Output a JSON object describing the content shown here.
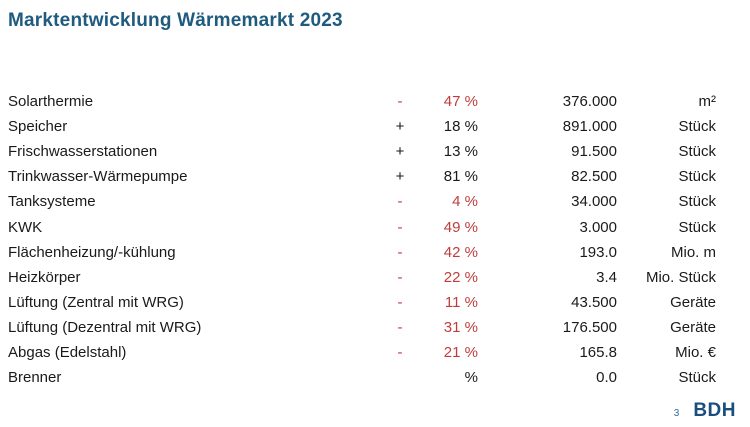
{
  "title": "Marktentwicklung Wärmemarkt 2023",
  "colors": {
    "accent_blue": "#1E5B7E",
    "negative_red": "#BE3E3C",
    "logo_blue": "#1A4E7D",
    "page_number_blue": "#2E6E99"
  },
  "table": {
    "rows": [
      {
        "label": "Solarthermie",
        "sign": "-",
        "percent": "47 %",
        "value": "376.000",
        "unit": "m²"
      },
      {
        "label": "Speicher",
        "sign": "+",
        "percent": "18 %",
        "value": "891.000",
        "unit": "Stück"
      },
      {
        "label": "Frischwasserstationen",
        "sign": "+",
        "percent": "13 %",
        "value": "91.500",
        "unit": "Stück"
      },
      {
        "label": "Trinkwasser-Wärmepumpe",
        "sign": "+",
        "percent": "81 %",
        "value": "82.500",
        "unit": "Stück"
      },
      {
        "label": "Tanksysteme",
        "sign": "-",
        "percent": "4 %",
        "value": "34.000",
        "unit": "Stück"
      },
      {
        "label": "KWK",
        "sign": "-",
        "percent": "49 %",
        "value": "3.000",
        "unit": "Stück"
      },
      {
        "label": "Flächenheizung/-kühlung",
        "sign": "-",
        "percent": "42 %",
        "value": "193.0",
        "unit": "Mio. m"
      },
      {
        "label": "Heizkörper",
        "sign": "-",
        "percent": "22 %",
        "value": "3.4",
        "unit": "Mio. Stück"
      },
      {
        "label": "Lüftung (Zentral mit WRG)",
        "sign": "-",
        "percent": "11 %",
        "value": "43.500",
        "unit": "Geräte"
      },
      {
        "label": "Lüftung (Dezentral mit WRG)",
        "sign": "-",
        "percent": "31 %",
        "value": "176.500",
        "unit": "Geräte"
      },
      {
        "label": "Abgas (Edelstahl)",
        "sign": "-",
        "percent": "21 %",
        "value": "165.8",
        "unit": "Mio. €"
      },
      {
        "label": "Brenner",
        "sign": "",
        "percent": "%",
        "value": "0.0",
        "unit": "Stück"
      }
    ]
  },
  "footer": {
    "page_number": "3",
    "logo": "BDH"
  }
}
